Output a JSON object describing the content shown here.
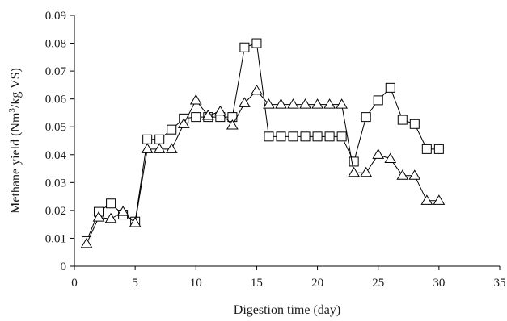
{
  "chart_data": {
    "type": "line",
    "title": "",
    "xlabel": "Digestion time (day)",
    "ylabel": "Methane yield (Nm³/kg VS)",
    "ylabel_parts": {
      "before": "Methane yield (Nm",
      "sup": "3",
      "after": "/kg VS)"
    },
    "xlim": [
      0,
      35
    ],
    "ylim": [
      0,
      0.09
    ],
    "xticks": [
      "0",
      "5",
      "10",
      "15",
      "20",
      "25",
      "30",
      "35"
    ],
    "yticks": [
      "0",
      "0.01",
      "0.02",
      "0.03",
      "0.04",
      "0.05",
      "0.06",
      "0.07",
      "0.08",
      "0.09"
    ],
    "grid": false,
    "legend": "none",
    "x": [
      1,
      2,
      3,
      4,
      5,
      6,
      7,
      8,
      9,
      10,
      11,
      12,
      13,
      14,
      15,
      16,
      17,
      18,
      19,
      20,
      21,
      22,
      23,
      24,
      25,
      26,
      27,
      28,
      29,
      30
    ],
    "series": [
      {
        "marker": "square",
        "values": [
          0.009,
          0.0195,
          0.0225,
          0.0185,
          0.016,
          0.0455,
          0.0455,
          0.049,
          0.053,
          0.0535,
          0.0535,
          0.0535,
          0.0535,
          0.0785,
          0.08,
          0.0465,
          0.0465,
          0.0465,
          0.0465,
          0.0465,
          0.0465,
          0.0465,
          0.0375,
          0.0535,
          0.0595,
          0.064,
          0.0525,
          0.051,
          0.042,
          0.042
        ]
      },
      {
        "marker": "triangle",
        "values": [
          0.008,
          0.0175,
          0.017,
          0.0195,
          0.0155,
          0.042,
          0.042,
          0.042,
          0.051,
          0.0595,
          0.054,
          0.0555,
          0.0505,
          0.0585,
          0.063,
          0.058,
          0.058,
          0.058,
          0.058,
          0.058,
          0.058,
          0.058,
          0.0335,
          0.0335,
          0.04,
          0.0385,
          0.0325,
          0.0325,
          0.0235,
          0.0235
        ]
      }
    ]
  }
}
